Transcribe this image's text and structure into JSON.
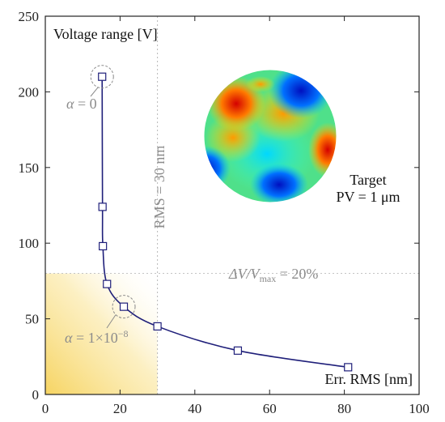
{
  "chart_data": {
    "type": "line",
    "x": [
      15.2,
      15.3,
      15.4,
      16.5,
      21.0,
      30.0,
      51.5,
      81.0
    ],
    "y": [
      210,
      124,
      98,
      73,
      58,
      45,
      29,
      18
    ],
    "xlim": [
      0,
      100
    ],
    "ylim": [
      0,
      250
    ],
    "x_ticks": [
      "0",
      "20",
      "40",
      "60",
      "80",
      "100"
    ],
    "y_ticks": [
      "0",
      "50",
      "100",
      "150",
      "200",
      "250"
    ],
    "ylabel": "Voltage range [V]",
    "xlabel": "Err. RMS [nm]",
    "grid": false,
    "colors": {
      "line": "#1f1f7a",
      "ref": "#b5b5b5",
      "shade": "#f6d460"
    },
    "ref_lines": {
      "vertical_x": 30,
      "vertical_label": "RMS = 30 nm",
      "horizontal_y": 80,
      "horizontal_label_delta": "ΔV/V",
      "horizontal_label_sub": "max",
      "horizontal_label_value": " = 20%"
    },
    "annotations": [
      {
        "sym": "α",
        "text": " = 0",
        "x": 15.2,
        "y": 210
      },
      {
        "sym": "α",
        "text": " = 1×10",
        "sup": "−8",
        "x": 21.0,
        "y": 58
      }
    ],
    "inset": {
      "title": "Target",
      "subtitle": "PV = 1 μm",
      "colormap": "jet"
    }
  }
}
